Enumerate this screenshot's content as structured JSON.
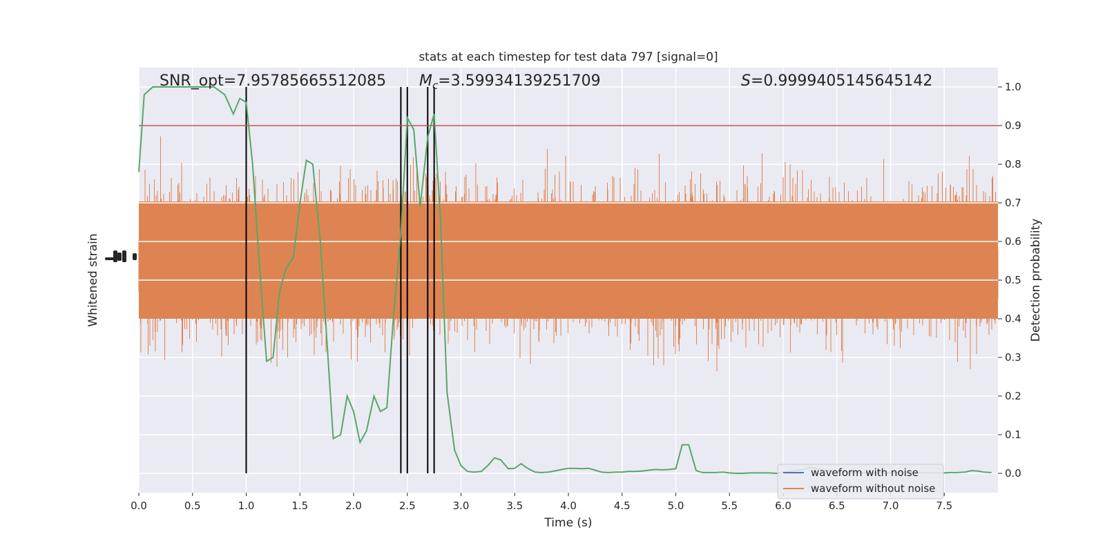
{
  "chart_data": {
    "type": "line",
    "title": "stats at each timestep for test data 797 [signal=0]",
    "xlabel": "Time (s)",
    "ylabel_left": "Whitened strain",
    "ylabel_right": "Detection probability",
    "xlim": [
      0.0,
      8.0
    ],
    "ylim_right": [
      -0.05,
      1.05
    ],
    "xticks": [
      "0.0",
      "0.5",
      "1.0",
      "1.5",
      "2.0",
      "2.5",
      "3.0",
      "3.5",
      "4.0",
      "4.5",
      "5.0",
      "5.5",
      "6.0",
      "6.5",
      "7.0",
      "7.5"
    ],
    "yticks_right": [
      "0.0",
      "0.1",
      "0.2",
      "0.3",
      "0.4",
      "0.5",
      "0.6",
      "0.7",
      "0.8",
      "0.9",
      "1.0"
    ],
    "annotations": {
      "snr": "SNR_opt=7.95785665512085",
      "mc_symbol": "M",
      "mc_sub": "c",
      "mc_value": "=3.59934139251709",
      "s_symbol": "S",
      "s_value": "=0.9999405145645142"
    },
    "threshold": 0.9,
    "vlines": [
      1.0,
      2.44,
      2.5,
      2.69,
      2.75
    ],
    "legend": [
      "waveform with noise",
      "waveform without noise"
    ],
    "legend_position": "lower-right",
    "colors": {
      "background": "#eaeaf2",
      "grid": "#ffffff",
      "noise_waveform": "#dd8452",
      "clean_waveform": "#4c72b0",
      "probability": "#55a868",
      "threshold": "#c44e52",
      "vlines": "#000000"
    },
    "detection_probability": {
      "x": [
        0.0,
        0.05,
        0.13,
        0.2,
        0.3,
        0.4,
        0.5,
        0.6,
        0.7,
        0.8,
        0.88,
        0.94,
        1.0,
        1.06,
        1.12,
        1.19,
        1.25,
        1.31,
        1.37,
        1.44,
        1.5,
        1.56,
        1.62,
        1.69,
        1.75,
        1.81,
        1.88,
        1.94,
        2.0,
        2.06,
        2.12,
        2.19,
        2.25,
        2.31,
        2.37,
        2.44,
        2.5,
        2.56,
        2.62,
        2.69,
        2.75,
        2.81,
        2.87,
        2.94,
        3.0,
        3.06,
        3.12,
        3.19,
        3.25,
        3.31,
        3.37,
        3.44,
        3.5,
        3.56,
        3.62,
        3.69,
        3.75,
        3.81,
        3.87,
        3.94,
        4.0,
        4.06,
        4.12,
        4.19,
        4.25,
        4.31,
        4.37,
        4.44,
        4.5,
        4.56,
        4.62,
        4.69,
        4.75,
        4.81,
        4.87,
        4.94,
        5.0,
        5.06,
        5.12,
        5.19,
        5.25,
        5.31,
        5.37,
        5.44,
        5.5,
        5.56,
        5.62,
        5.69,
        5.75,
        5.81,
        5.87,
        5.94,
        6.0,
        6.06,
        6.12,
        6.19,
        6.25,
        6.31,
        6.37,
        6.44,
        6.5,
        6.56,
        6.62,
        6.69,
        6.75,
        6.81,
        6.87,
        6.94,
        7.0,
        7.06,
        7.12,
        7.19,
        7.25,
        7.31,
        7.37,
        7.44,
        7.5,
        7.56,
        7.62,
        7.69,
        7.75,
        7.81,
        7.87,
        7.94
      ],
      "y": [
        0.78,
        0.98,
        1.0,
        1.0,
        1.0,
        1.0,
        1.0,
        1.0,
        1.0,
        0.98,
        0.93,
        0.97,
        0.96,
        0.8,
        0.55,
        0.29,
        0.3,
        0.47,
        0.53,
        0.56,
        0.7,
        0.81,
        0.8,
        0.6,
        0.35,
        0.09,
        0.1,
        0.2,
        0.16,
        0.08,
        0.11,
        0.2,
        0.16,
        0.17,
        0.4,
        0.62,
        0.92,
        0.89,
        0.69,
        0.87,
        0.93,
        0.65,
        0.21,
        0.06,
        0.02,
        0.005,
        0.003,
        0.005,
        0.02,
        0.04,
        0.035,
        0.012,
        0.013,
        0.025,
        0.013,
        0.003,
        0.002,
        0.003,
        0.006,
        0.01,
        0.013,
        0.013,
        0.012,
        0.013,
        0.008,
        0.003,
        0.002,
        0.003,
        0.003,
        0.005,
        0.005,
        0.006,
        0.008,
        0.01,
        0.009,
        0.01,
        0.012,
        0.074,
        0.074,
        0.007,
        0.002,
        0.002,
        0.002,
        0.003,
        0.001,
        0.0,
        0.0,
        0.001,
        0.001,
        0.001,
        0.001,
        0.0,
        0.003,
        0.005,
        0.008,
        0.01,
        0.015,
        0.012,
        0.008,
        0.006,
        0.004,
        0.003,
        0.002,
        0.002,
        0.001,
        0.001,
        0.001,
        0.001,
        0.002,
        0.002,
        0.003,
        0.002,
        0.002,
        0.001,
        0.001,
        0.001,
        0.001,
        0.002,
        0.002,
        0.003,
        0.007,
        0.006,
        0.003,
        0.002
      ]
    }
  }
}
